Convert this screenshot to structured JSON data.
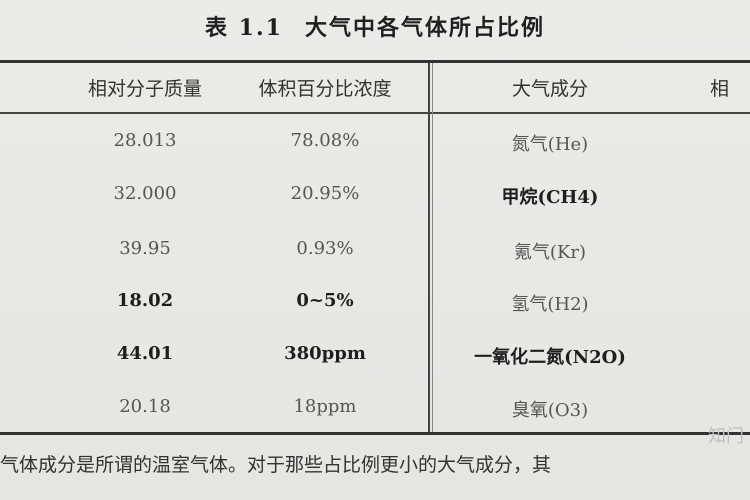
{
  "title": {
    "number": "表 1.1",
    "text": "大气中各气体所占比例"
  },
  "headers": {
    "mass": "相对分子质量",
    "percent": "体积百分比浓度",
    "component": "大气成分",
    "extra": "相"
  },
  "rows": [
    {
      "mass": "28.013",
      "percent": "78.08%",
      "component": "氮气(He)",
      "bold": false
    },
    {
      "mass": "32.000",
      "percent": "20.95%",
      "component": "甲烷(CH4)",
      "bold": false,
      "component_bold": true
    },
    {
      "mass": "39.95",
      "percent": "0.93%",
      "component": "氪气(Kr)",
      "bold": false
    },
    {
      "mass": "18.02",
      "percent": "0~5%",
      "component": "氢气(H2)",
      "bold": true
    },
    {
      "mass": "44.01",
      "percent": "380ppm",
      "component": "一氧化二氮(N2O)",
      "bold": true,
      "component_bold": true
    },
    {
      "mass": "20.18",
      "percent": "18ppm",
      "component": "臭氧(O3)",
      "bold": false
    }
  ],
  "footer": "气体成分是所谓的温室气体。对于那些占比例更小的大气成分，其",
  "watermark": "知门"
}
